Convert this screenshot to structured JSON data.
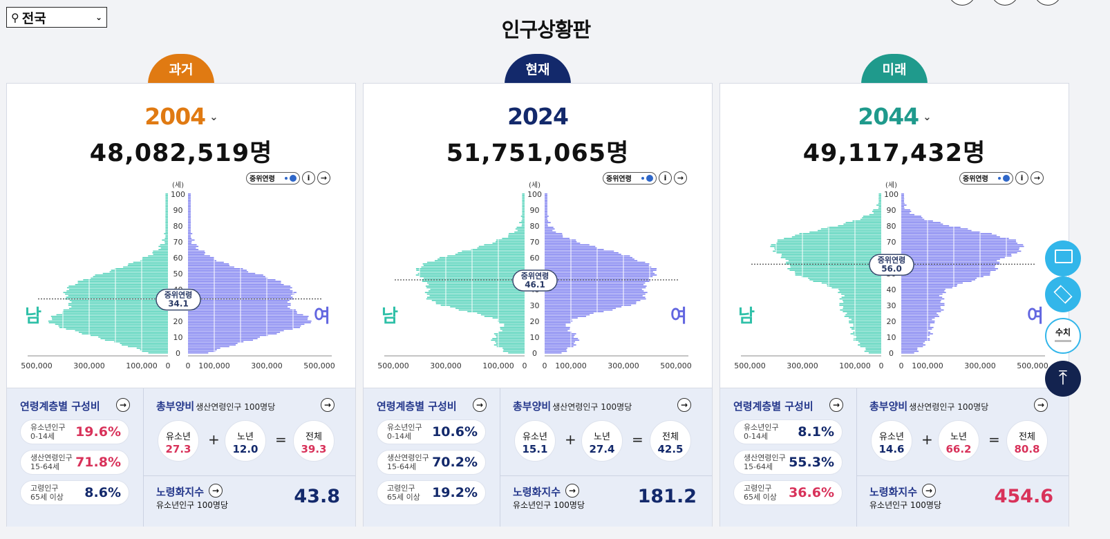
{
  "header": {
    "region": "전국",
    "title": "인구상황판"
  },
  "axis": {
    "unit": "(세)",
    "age_ticks": [
      "0",
      "10",
      "20",
      "30",
      "40",
      "50",
      "60",
      "70",
      "80",
      "90",
      "100"
    ],
    "left_ticks": [
      "500,000",
      "300,000",
      "100,000",
      "0"
    ],
    "right_ticks": [
      "0",
      "100,000",
      "300,000",
      "500,000"
    ],
    "male": "남",
    "female": "여"
  },
  "labels": {
    "median_toggle": "중위연령",
    "median": "중위연령",
    "age_comp": "연령계층별 구성비",
    "youth": "유소년인구",
    "youth_range": "0-14세",
    "working": "생산연령인구",
    "working_range": "15-64세",
    "elderly": "고령인구",
    "elderly_range": "65세 이상",
    "dep_title": "총부양비",
    "dep_sub": "생산연령인구 100명당",
    "dep_youth": "유소년",
    "dep_old": "노년",
    "dep_total": "전체",
    "aging_title": "노령화지수",
    "aging_sub": "유소년인구 100명당"
  },
  "panels": [
    {
      "tab": "과거",
      "year": "2004",
      "has_dropdown": true,
      "total": "48,082,519명",
      "color": "#e07a12",
      "median": "34.1",
      "median_age": 34.1,
      "youth_pct": "19.6%",
      "working_pct": "71.8%",
      "elderly_pct": "8.6%",
      "dep_youth": "27.3",
      "dep_old": "12.0",
      "dep_total": "39.3",
      "aging": "43.8",
      "highlight": [
        "youth_pct",
        "working_pct",
        "dep_youth",
        "dep_total"
      ]
    },
    {
      "tab": "현재",
      "year": "2024",
      "has_dropdown": false,
      "total": "51,751,065명",
      "color": "#13296b",
      "median": "46.1",
      "median_age": 46.1,
      "youth_pct": "10.6%",
      "working_pct": "70.2%",
      "elderly_pct": "19.2%",
      "dep_youth": "15.1",
      "dep_old": "27.4",
      "dep_total": "42.5",
      "aging": "181.2",
      "highlight": []
    },
    {
      "tab": "미래",
      "year": "2044",
      "has_dropdown": true,
      "total": "49,117,432명",
      "color": "#1f9a8c",
      "median": "56.0",
      "median_age": 56.0,
      "youth_pct": "8.1%",
      "working_pct": "55.3%",
      "elderly_pct": "36.6%",
      "dep_youth": "14.6",
      "dep_old": "66.2",
      "dep_total": "80.8",
      "aging": "454.6",
      "highlight": [
        "elderly_pct",
        "dep_old",
        "dep_total",
        "aging"
      ]
    }
  ],
  "sidebar": {
    "toggle_label": "수치"
  },
  "colors": {
    "male": "#4fd1b8",
    "female": "#7d7ff0",
    "navy": "#13296b",
    "red": "#d8325a"
  }
}
